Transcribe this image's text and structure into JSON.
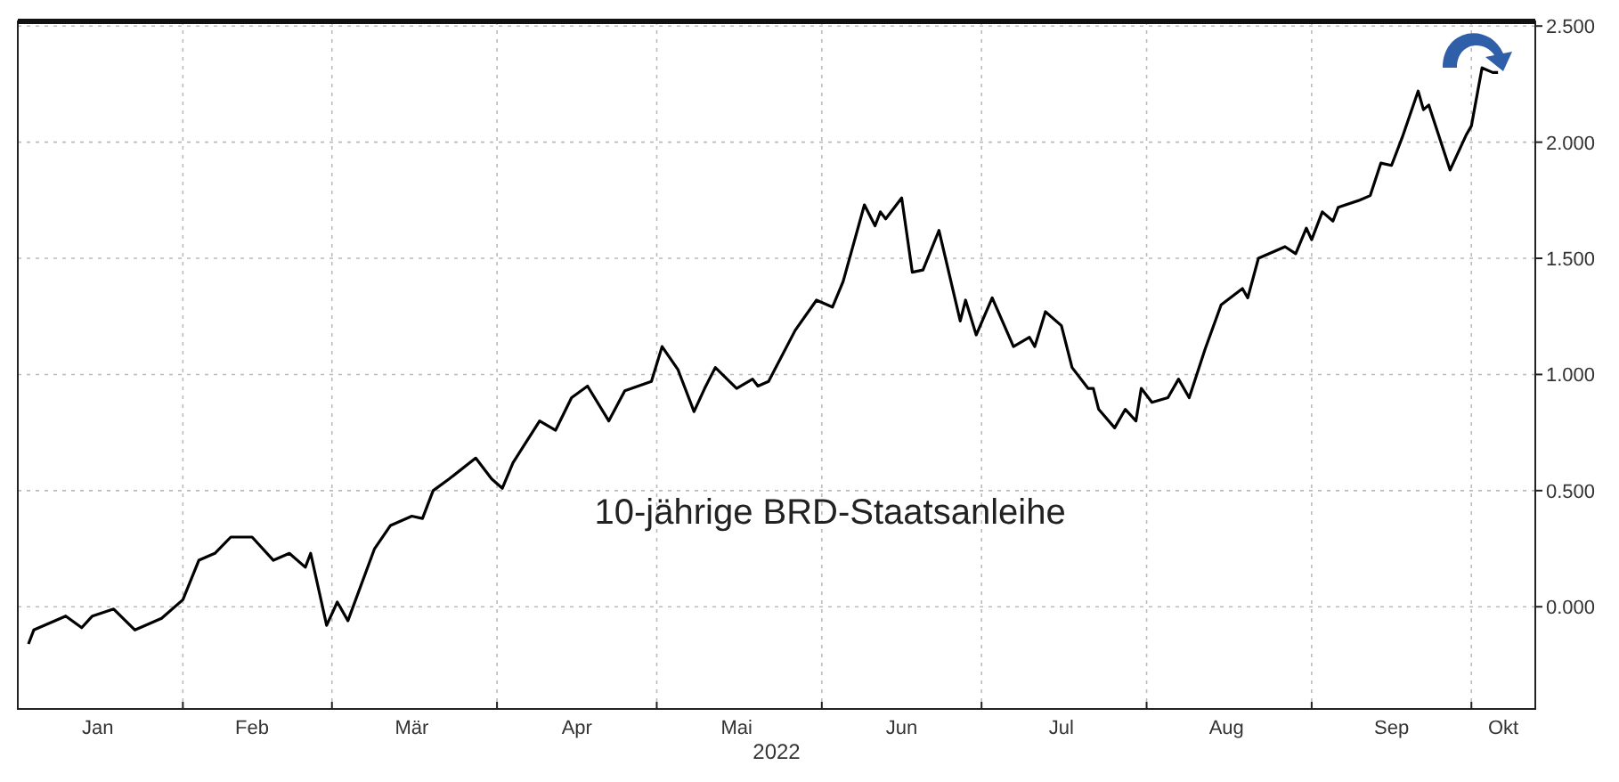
{
  "chart_data": {
    "type": "line",
    "title": "10-jährige BRD-Staatsanleihe",
    "xlabel": "2022",
    "xlim": [
      "2022-01-01",
      "2022-10-13"
    ],
    "xticks": [
      {
        "value": "2022-01-16",
        "label": "Jan"
      },
      {
        "value": "2022-02-01",
        "label": null
      },
      {
        "value": "2022-02-14",
        "label": "Feb"
      },
      {
        "value": "2022-03-01",
        "label": null
      },
      {
        "value": "2022-03-16",
        "label": "Mär"
      },
      {
        "value": "2022-04-01",
        "label": null
      },
      {
        "value": "2022-04-16",
        "label": "Apr"
      },
      {
        "value": "2022-05-01",
        "label": null
      },
      {
        "value": "2022-05-16",
        "label": "Mai"
      },
      {
        "value": "2022-06-01",
        "label": null
      },
      {
        "value": "2022-06-16",
        "label": "Jun"
      },
      {
        "value": "2022-07-01",
        "label": null
      },
      {
        "value": "2022-07-16",
        "label": "Jul"
      },
      {
        "value": "2022-08-01",
        "label": null
      },
      {
        "value": "2022-08-16",
        "label": "Aug"
      },
      {
        "value": "2022-09-01",
        "label": null
      },
      {
        "value": "2022-09-16",
        "label": "Sep"
      },
      {
        "value": "2022-10-01",
        "label": null
      },
      {
        "value": "2022-10-07",
        "label": "Okt"
      }
    ],
    "ylim": [
      -0.44,
      2.52
    ],
    "yticks": [
      {
        "value": 0,
        "label": "0.000"
      },
      {
        "value": 0.5,
        "label": "0.500"
      },
      {
        "value": 1,
        "label": "1.000"
      },
      {
        "value": 1.5,
        "label": "1.500"
      },
      {
        "value": 2,
        "label": "2.000"
      },
      {
        "value": 2.5,
        "label": "2.500"
      }
    ],
    "grid": true,
    "marker": "none",
    "line_style": "solid",
    "x": [
      "2022-01-03",
      "2022-01-04",
      "2022-01-10",
      "2022-01-13",
      "2022-01-15",
      "2022-01-19",
      "2022-01-23",
      "2022-01-28",
      "2022-02-01",
      "2022-02-04",
      "2022-02-07",
      "2022-02-10",
      "2022-02-14",
      "2022-02-18",
      "2022-02-21",
      "2022-02-24",
      "2022-02-25",
      "2022-02-28",
      "2022-03-02",
      "2022-03-04",
      "2022-03-09",
      "2022-03-12",
      "2022-03-16",
      "2022-03-18",
      "2022-03-20",
      "2022-03-23",
      "2022-03-28",
      "2022-03-31",
      "2022-04-02",
      "2022-04-04",
      "2022-04-09",
      "2022-04-12",
      "2022-04-15",
      "2022-04-18",
      "2022-04-22",
      "2022-04-25",
      "2022-04-30",
      "2022-05-02",
      "2022-05-05",
      "2022-05-08",
      "2022-05-10",
      "2022-05-12",
      "2022-05-16",
      "2022-05-19",
      "2022-05-20",
      "2022-05-22",
      "2022-05-27",
      "2022-05-31",
      "2022-06-03",
      "2022-06-05",
      "2022-06-09",
      "2022-06-11",
      "2022-06-12",
      "2022-06-13",
      "2022-06-16",
      "2022-06-18",
      "2022-06-20",
      "2022-06-23",
      "2022-06-27",
      "2022-06-28",
      "2022-06-30",
      "2022-07-03",
      "2022-07-07",
      "2022-07-10",
      "2022-07-11",
      "2022-07-13",
      "2022-07-16",
      "2022-07-18",
      "2022-07-21",
      "2022-07-22",
      "2022-07-23",
      "2022-07-26",
      "2022-07-28",
      "2022-07-30",
      "2022-07-31",
      "2022-08-02",
      "2022-08-05",
      "2022-08-07",
      "2022-08-09",
      "2022-08-12",
      "2022-08-15",
      "2022-08-19",
      "2022-08-20",
      "2022-08-22",
      "2022-08-27",
      "2022-08-29",
      "2022-08-31",
      "2022-09-01",
      "2022-09-03",
      "2022-09-05",
      "2022-09-06",
      "2022-09-10",
      "2022-09-12",
      "2022-09-14",
      "2022-09-16",
      "2022-09-18",
      "2022-09-21",
      "2022-09-22",
      "2022-09-23",
      "2022-09-27",
      "2022-09-30",
      "2022-10-01",
      "2022-10-03",
      "2022-10-05",
      "2022-10-06"
    ],
    "series": [
      {
        "color": "#000000",
        "values": [
          -0.16,
          -0.1,
          -0.04,
          -0.09,
          -0.04,
          -0.01,
          -0.1,
          -0.05,
          0.03,
          0.2,
          0.23,
          0.3,
          0.3,
          0.2,
          0.23,
          0.17,
          0.23,
          -0.08,
          0.02,
          -0.06,
          0.25,
          0.35,
          0.39,
          0.38,
          0.5,
          0.55,
          0.64,
          0.55,
          0.51,
          0.62,
          0.8,
          0.76,
          0.9,
          0.95,
          0.8,
          0.93,
          0.97,
          1.12,
          1.02,
          0.84,
          0.94,
          1.03,
          0.94,
          0.98,
          0.95,
          0.97,
          1.19,
          1.32,
          1.29,
          1.4,
          1.73,
          1.64,
          1.7,
          1.67,
          1.76,
          1.44,
          1.45,
          1.62,
          1.23,
          1.32,
          1.17,
          1.33,
          1.12,
          1.16,
          1.12,
          1.27,
          1.21,
          1.03,
          0.94,
          0.94,
          0.85,
          0.77,
          0.85,
          0.8,
          0.94,
          0.88,
          0.9,
          0.98,
          0.9,
          1.11,
          1.3,
          1.37,
          1.33,
          1.5,
          1.55,
          1.52,
          1.63,
          1.58,
          1.7,
          1.66,
          1.72,
          1.75,
          1.77,
          1.91,
          1.9,
          2.02,
          2.22,
          2.14,
          2.16,
          1.88,
          2.03,
          2.07,
          2.32,
          2.3,
          2.3
        ]
      }
    ]
  }
}
